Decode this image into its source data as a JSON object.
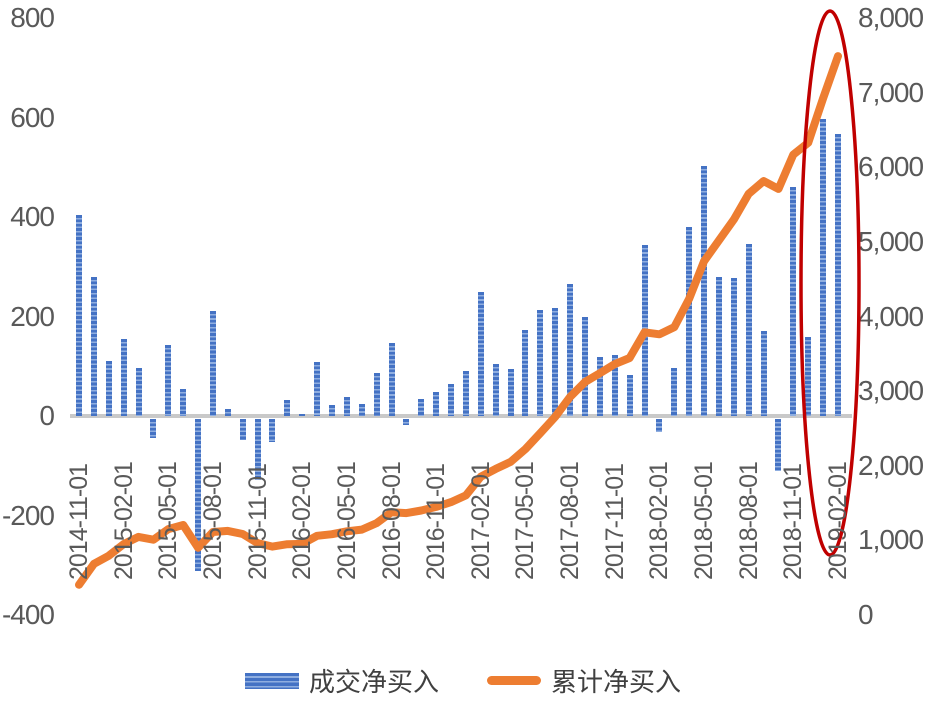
{
  "chart_data": {
    "type": "bar",
    "subtype": "combo-bar-line-dual-axis",
    "title": "",
    "categories": [
      "2014-11-01",
      "2014-12-01",
      "2015-01-01",
      "2015-02-01",
      "2015-03-01",
      "2015-04-01",
      "2015-05-01",
      "2015-06-01",
      "2015-07-01",
      "2015-08-01",
      "2015-09-01",
      "2015-10-01",
      "2015-11-01",
      "2015-12-01",
      "2016-01-01",
      "2016-02-01",
      "2016-03-01",
      "2016-04-01",
      "2016-05-01",
      "2016-06-01",
      "2016-07-01",
      "2016-08-01",
      "2016-09-01",
      "2016-10-01",
      "2016-11-01",
      "2016-12-01",
      "2017-01-01",
      "2017-02-01",
      "2017-03-01",
      "2017-04-01",
      "2017-05-01",
      "2017-06-01",
      "2017-07-01",
      "2017-08-01",
      "2017-09-01",
      "2017-10-01",
      "2017-11-01",
      "2017-12-01",
      "2018-01-01",
      "2018-02-01",
      "2018-03-01",
      "2018-04-01",
      "2018-05-01",
      "2018-06-01",
      "2018-07-01",
      "2018-08-01",
      "2018-09-01",
      "2018-10-01",
      "2018-11-01",
      "2018-12-01",
      "2019-01-01",
      "2019-02-01"
    ],
    "x_tick_every": 3,
    "x_tick_labels_shown": [
      "2014-11-01",
      "2015-02-01",
      "2015-05-01",
      "2015-08-01",
      "2015-11-01",
      "2016-02-01",
      "2016-05-01",
      "2016-08-01",
      "2016-11-01",
      "2017-02-01",
      "2017-05-01",
      "2017-08-01",
      "2017-11-01",
      "2018-02-01",
      "2018-05-01",
      "2018-08-01",
      "2018-11-01",
      "2019-02-01"
    ],
    "series": [
      {
        "name": "成交净买入",
        "type": "bar",
        "axis": "left",
        "color": "#4472C4",
        "stripe_color": "#8FAEE0",
        "values": [
          405,
          280,
          110,
          155,
          97,
          -38,
          142,
          55,
          -306,
          212,
          15,
          -42,
          -122,
          -46,
          32,
          4,
          108,
          22,
          38,
          24,
          86,
          146,
          -12,
          35,
          48,
          65,
          90,
          250,
          105,
          94,
          172,
          214,
          218,
          266,
          200,
          118,
          122,
          82,
          344,
          -26,
          96,
          380,
          502,
          280,
          278,
          346,
          170,
          -104,
          460,
          158,
          596,
          566
        ]
      },
      {
        "name": "累计净买入",
        "type": "line",
        "axis": "right",
        "color": "#ED7D31",
        "values": [
          405,
          685,
          795,
          950,
          1047,
          1009,
          1151,
          1206,
          900,
          1112,
          1127,
          1085,
          963,
          917,
          949,
          953,
          1061,
          1083,
          1121,
          1145,
          1231,
          1377,
          1365,
          1400,
          1448,
          1513,
          1603,
          1853,
          1958,
          2052,
          2224,
          2438,
          2656,
          2922,
          3122,
          3240,
          3362,
          3444,
          3788,
          3762,
          3858,
          4238,
          4740,
          5020,
          5298,
          5644,
          5814,
          5710,
          6170,
          6328,
          6924,
          7490
        ]
      }
    ],
    "left_axis": {
      "min": -400,
      "max": 800,
      "ticks": [
        "800",
        "600",
        "400",
        "200",
        "0",
        "-200",
        "-400"
      ]
    },
    "right_axis": {
      "min": 0,
      "max": 8000,
      "ticks": [
        "8,000",
        "7,000",
        "6,000",
        "5,000",
        "4,000",
        "3,000",
        "2,000",
        "1,000",
        "0"
      ]
    },
    "grid": "off",
    "legend_position": "bottom",
    "annotation": {
      "type": "ellipse",
      "color": "#C00000",
      "highlights": [
        "2019-01-01",
        "2019-02-01"
      ]
    },
    "baseline_color": "#C9C9C9",
    "axis_text_color": "#595959"
  },
  "legend": {
    "bar_label": "成交净买入",
    "line_label": "累计净买入"
  }
}
